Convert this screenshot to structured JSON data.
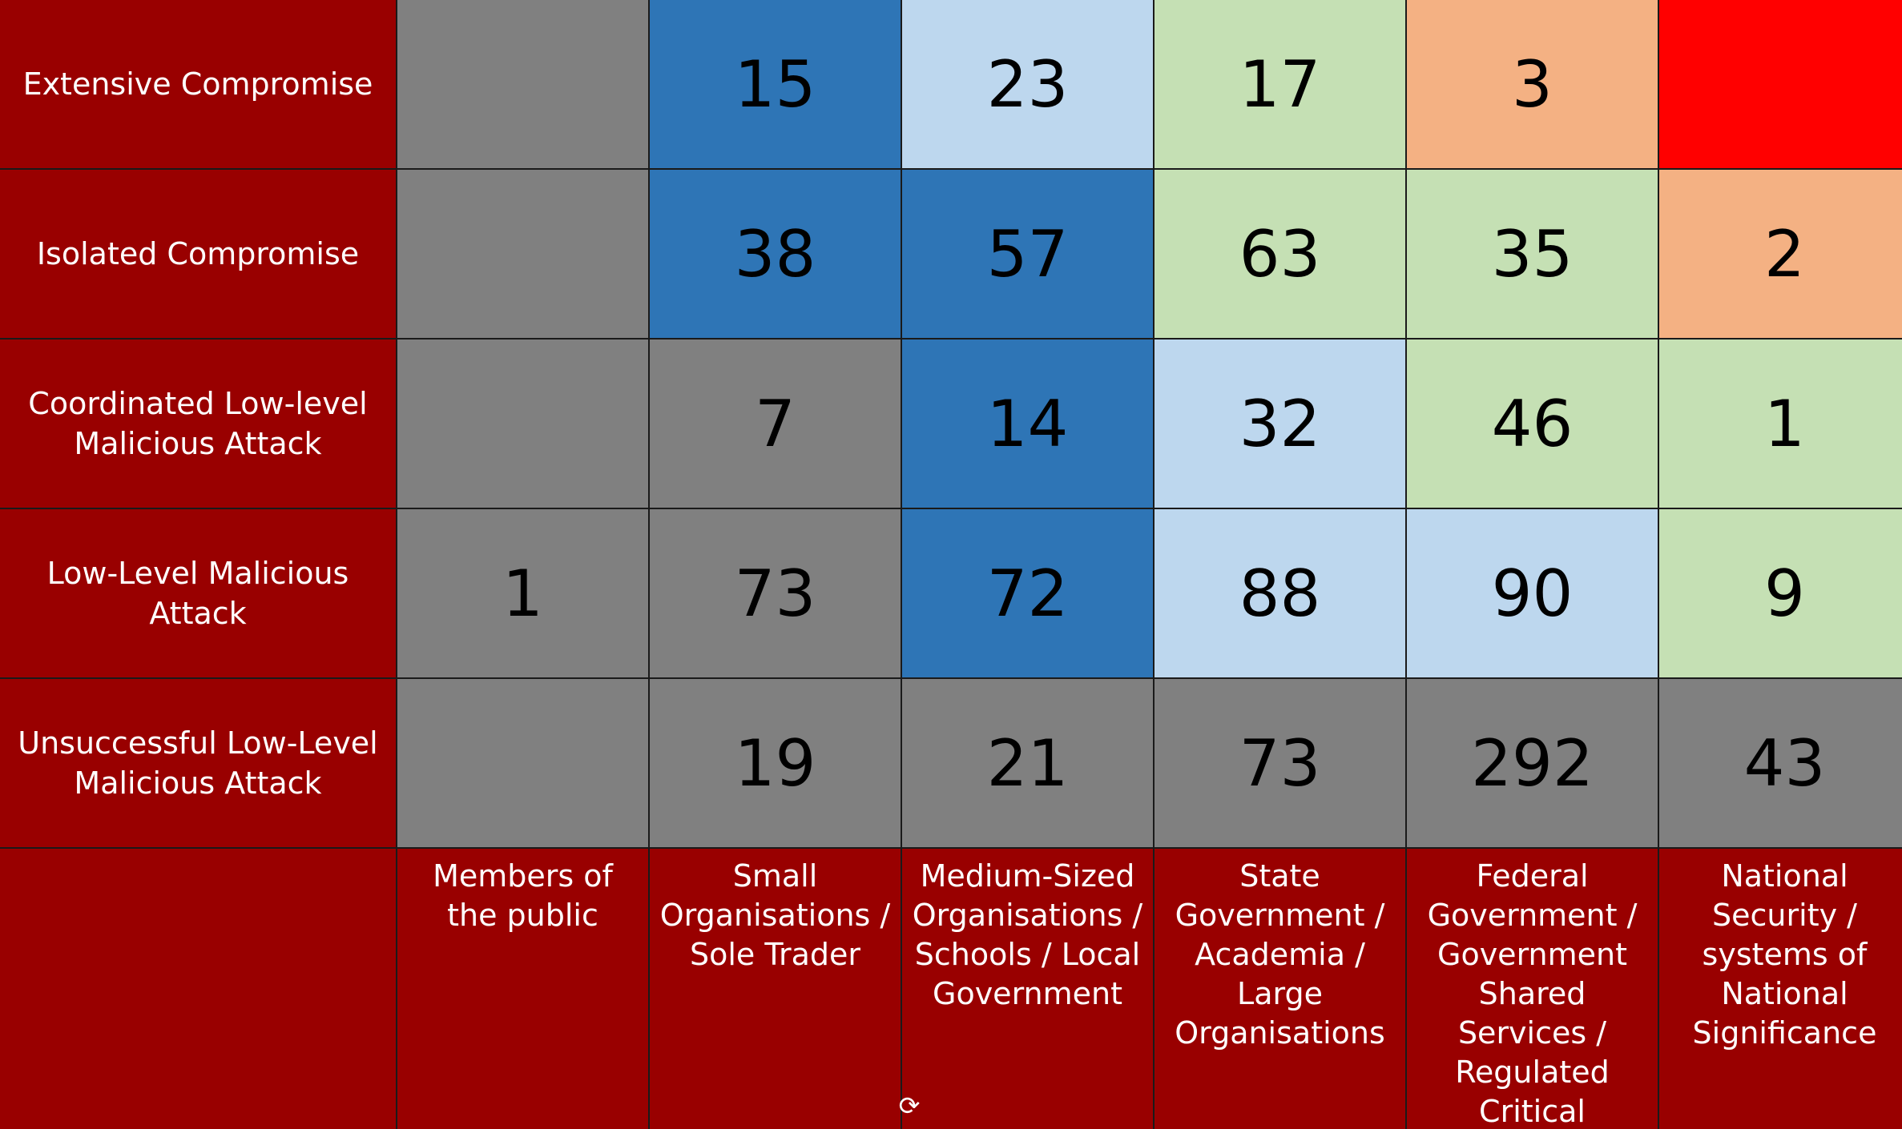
{
  "chart_data": {
    "type": "heatmap",
    "rows": [
      "Extensive Compromise",
      "Isolated Compromise",
      "Coordinated Low-level Malicious Attack",
      "Low-Level Malicious Attack",
      "Unsuccessful Low-Level Malicious Attack"
    ],
    "columns": [
      "Members of the public",
      "Small Organisations / Sole Trader",
      "Medium-Sized Organisations / Schools / Local Government",
      "State Government / Academia / Large Organisations",
      "Federal Government / Government Shared Services / Regulated Critical Infrastructure",
      "National Security / systems of National Significance"
    ],
    "values": [
      [
        null,
        15,
        23,
        17,
        3,
        null
      ],
      [
        null,
        38,
        57,
        63,
        35,
        2
      ],
      [
        null,
        7,
        14,
        32,
        46,
        1
      ],
      [
        1,
        73,
        72,
        88,
        90,
        9
      ],
      [
        null,
        19,
        21,
        73,
        292,
        43
      ]
    ],
    "cell_colors": [
      [
        "#808080",
        "#2e75b6",
        "#bdd7ee",
        "#c5e0b4",
        "#f4b183",
        "#ff0000"
      ],
      [
        "#808080",
        "#2e75b6",
        "#2e75b6",
        "#c5e0b4",
        "#c5e0b4",
        "#f4b183"
      ],
      [
        "#808080",
        "#808080",
        "#2e75b6",
        "#bdd7ee",
        "#c5e0b4",
        "#c5e0b4"
      ],
      [
        "#808080",
        "#808080",
        "#2e75b6",
        "#bdd7ee",
        "#bdd7ee",
        "#c5e0b4"
      ],
      [
        "#808080",
        "#808080",
        "#808080",
        "#808080",
        "#808080",
        "#808080"
      ]
    ],
    "label_background": "#990000",
    "label_color": "#ffffff"
  },
  "overlay": {
    "rotate_handle_icon": "rotate-handle-icon",
    "rotate_handle_glyph": "⟳"
  }
}
